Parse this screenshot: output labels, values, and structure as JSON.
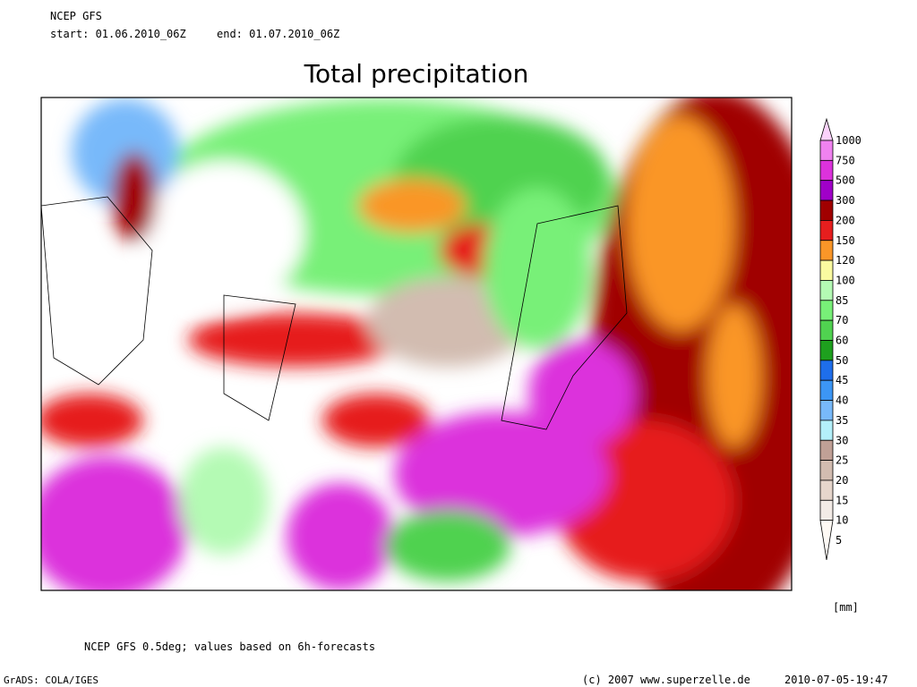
{
  "header": {
    "model": "NCEP GFS",
    "start": "start: 01.06.2010_06Z",
    "end": "end: 01.07.2010_06Z"
  },
  "title": "Total precipitation",
  "legend": {
    "unit": "[mm]",
    "levels": [
      1000,
      750,
      500,
      300,
      200,
      150,
      120,
      100,
      85,
      70,
      60,
      50,
      45,
      40,
      35,
      30,
      25,
      20,
      15,
      10,
      5
    ],
    "colors": [
      "#fbd2fb",
      "#f082f0",
      "#dc32dc",
      "#a000c8",
      "#a00000",
      "#e61e1e",
      "#fa9628",
      "#fafaa0",
      "#b4fab4",
      "#78f078",
      "#50d250",
      "#1ea01e",
      "#1e6eeb",
      "#3c96f5",
      "#78b9fa",
      "#b4f0fa",
      "#c0a096",
      "#d2bcb0",
      "#e6d6cc",
      "#f3ebe6",
      "#fffaf5"
    ]
  },
  "footer": {
    "note": "NCEP GFS 0.5deg; values based on 6h-forecasts",
    "software": "GrADS: COLA/IGES",
    "copyright": "(c) 2007 www.superzelle.de",
    "timestamp": "2010-07-05-19:47"
  }
}
